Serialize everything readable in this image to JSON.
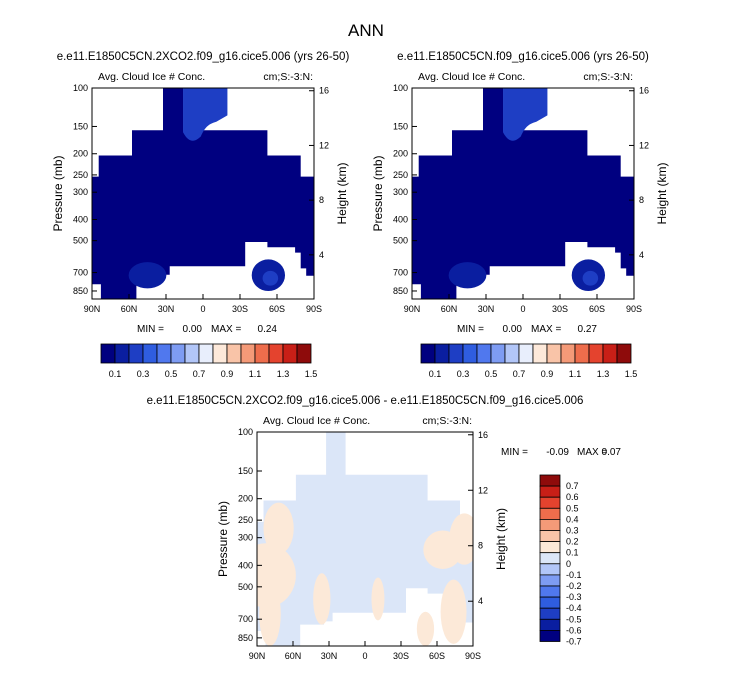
{
  "figure_title": "ANN",
  "palettes": {
    "abs": [
      "#000080",
      "#0a1ea0",
      "#1e3ec4",
      "#2f5de0",
      "#5078ee",
      "#7e9cf3",
      "#b2c6f8",
      "#e8eefc",
      "#fde9da",
      "#f9c4a8",
      "#f49a78",
      "#ee6d4c",
      "#e4432e",
      "#c81f17",
      "#8e0b0b"
    ],
    "diff": [
      "#000080",
      "#0a1ea0",
      "#1e3ec4",
      "#2f5de0",
      "#5078ee",
      "#7e9cf3",
      "#b2c6f8",
      "#dbe6f8",
      "#fce9d8",
      "#f9c4a8",
      "#f49a78",
      "#ee6d4c",
      "#e4432e",
      "#c81f17",
      "#8e0b0b"
    ]
  },
  "chart_data": [
    {
      "type": "heatmap",
      "title": "e.e11.E1850C5CN.2XCO2.f09_g16.cice5.006 (yrs 26-50)",
      "left_string": "Avg. Cloud Ice # Conc.",
      "right_string": "cm;S:-3:N:",
      "ylabel": "Pressure (mb)",
      "ylabel_right": "Height (km)",
      "xticks": [
        "90N",
        "60N",
        "30N",
        "0",
        "30S",
        "60S",
        "90S"
      ],
      "yticks": [
        "100",
        "150",
        "200",
        "250",
        "300",
        "400",
        "500",
        "700",
        "850"
      ],
      "yticks_right": [
        "16",
        "12",
        "8",
        "4"
      ],
      "min_label": "MIN =",
      "min_value": "0.00",
      "max_label": "MAX =",
      "max_value": "0.24",
      "x_range": [
        90,
        -90
      ],
      "y_range": [
        100,
        925
      ],
      "y_scale": "log",
      "field": "abs",
      "features": [
        {
          "lat": 45,
          "p": 720,
          "value": 0.13
        },
        {
          "lat": -53,
          "p": 720,
          "value": 0.23
        },
        {
          "lat": -3,
          "p": 130,
          "value": 0.14
        }
      ]
    },
    {
      "type": "heatmap",
      "title": "e.e11.E1850C5CN.f09_g16.cice5.006 (yrs 26-50)",
      "left_string": "Avg. Cloud Ice # Conc.",
      "right_string": "cm;S:-3:N:",
      "ylabel": "Pressure (mb)",
      "ylabel_right": "Height (km)",
      "xticks": [
        "90N",
        "60N",
        "30N",
        "0",
        "30S",
        "60S",
        "90S"
      ],
      "yticks": [
        "100",
        "150",
        "200",
        "250",
        "300",
        "400",
        "500",
        "700",
        "850"
      ],
      "yticks_right": [
        "16",
        "12",
        "8",
        "4"
      ],
      "min_label": "MIN =",
      "min_value": "0.00",
      "max_label": "MAX =",
      "max_value": "0.27",
      "x_range": [
        90,
        -90
      ],
      "y_range": [
        100,
        925
      ],
      "y_scale": "log",
      "field": "abs",
      "features": [
        {
          "lat": 45,
          "p": 720,
          "value": 0.15
        },
        {
          "lat": -53,
          "p": 720,
          "value": 0.27
        },
        {
          "lat": -3,
          "p": 130,
          "value": 0.14
        }
      ]
    },
    {
      "type": "heatmap",
      "title": "e.e11.E1850C5CN.2XCO2.f09_g16.cice5.006 - e.e11.E1850C5CN.f09_g16.cice5.006",
      "left_string": "Avg. Cloud Ice # Conc.",
      "right_string": "cm;S:-3:N:",
      "ylabel": "Pressure (mb)",
      "ylabel_right": "Height (km)",
      "xticks": [
        "90N",
        "60N",
        "30N",
        "0",
        "30S",
        "60S",
        "90S"
      ],
      "yticks": [
        "100",
        "150",
        "200",
        "250",
        "300",
        "400",
        "500",
        "700",
        "850"
      ],
      "yticks_right": [
        "16",
        "12",
        "8",
        "4"
      ],
      "min_label": "MIN =",
      "min_value": "-0.09",
      "max_label": "MAX =",
      "max_value": "0.07",
      "x_range": [
        90,
        -90
      ],
      "y_range": [
        100,
        925
      ],
      "y_scale": "log",
      "field": "diff"
    }
  ],
  "colorbars": {
    "abs_labels": [
      "0.1",
      "0.3",
      "0.5",
      "0.7",
      "0.9",
      "1.1",
      "1.3",
      "1.5"
    ],
    "diff_labels": [
      "0.7",
      "0.6",
      "0.5",
      "0.4",
      "0.3",
      "0.2",
      "0.1",
      "0",
      "-0.1",
      "-0.2",
      "-0.3",
      "-0.4",
      "-0.5",
      "-0.6",
      "-0.7"
    ]
  }
}
